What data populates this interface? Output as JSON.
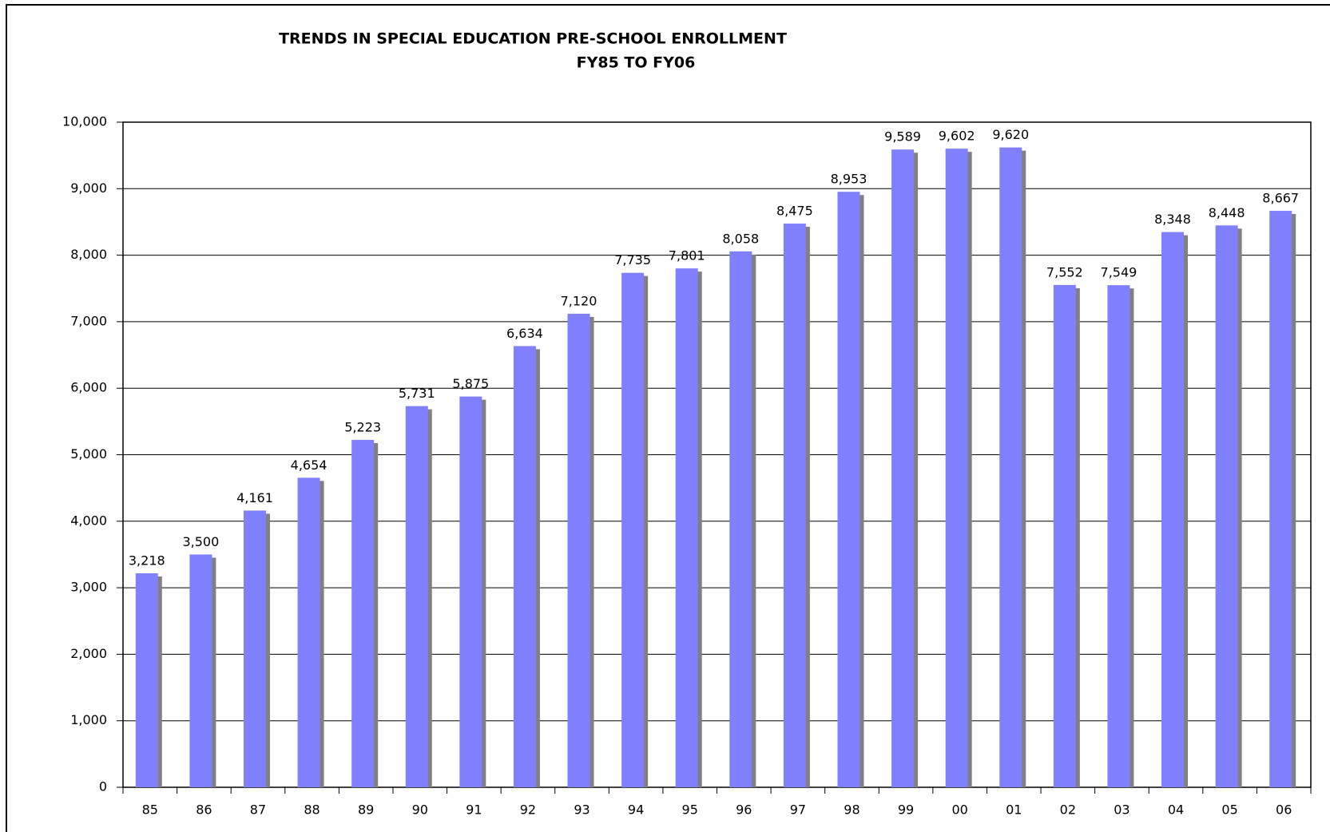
{
  "chart_data": {
    "type": "bar",
    "title": "TRENDS IN SPECIAL EDUCATION PRE-SCHOOL ENROLLMENT",
    "subtitle": "FY85 TO FY06",
    "categories": [
      "85",
      "86",
      "87",
      "88",
      "89",
      "90",
      "91",
      "92",
      "93",
      "94",
      "95",
      "96",
      "97",
      "98",
      "99",
      "00",
      "01",
      "02",
      "03",
      "04",
      "05",
      "06"
    ],
    "values": [
      3218,
      3500,
      4161,
      4654,
      5223,
      5731,
      5875,
      6634,
      7120,
      7735,
      7801,
      8058,
      8475,
      8953,
      9589,
      9602,
      9620,
      7552,
      7549,
      8348,
      8448,
      8667
    ],
    "value_labels": [
      "3,218",
      "3,500",
      "4,161",
      "4,654",
      "5,223",
      "5,731",
      "5,875",
      "6,634",
      "7,120",
      "7,735",
      "7,801",
      "8,058",
      "8,475",
      "8,953",
      "9,589",
      "9,602",
      "9,620",
      "7,552",
      "7,549",
      "8,348",
      "8,448",
      "8,667"
    ],
    "color": "#8080ff",
    "shadow_color": "#808080",
    "ylim": [
      0,
      10000
    ],
    "yticks": [
      0,
      {
        "value": 1000,
        "label": "1,000"
      },
      {
        "value": 2000,
        "label": "2,000"
      },
      {
        "value": 3000,
        "label": "3,000"
      },
      {
        "value": 4000,
        "label": "4,000"
      },
      {
        "value": 5000,
        "label": "5,000"
      },
      {
        "value": 6000,
        "label": "6,000"
      },
      {
        "value": 7000,
        "label": "7,000"
      },
      {
        "value": 8000,
        "label": "8,000"
      },
      {
        "value": 9000,
        "label": "9,000"
      },
      {
        "value": 10000,
        "label": "10,000"
      }
    ],
    "grid": true
  }
}
